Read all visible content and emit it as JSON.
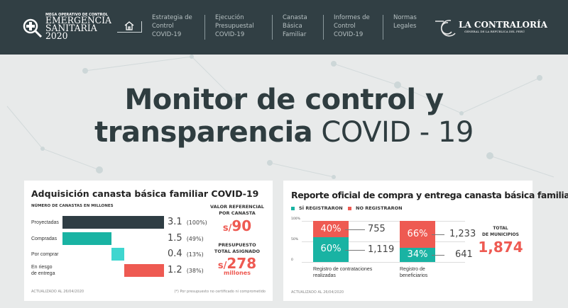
{
  "header": {
    "logo": {
      "kicker": "MEGA OPERATIVO DE CONTROL",
      "line1": "EMERGENCIA",
      "line2": "SANITARIA",
      "line3": "2020"
    },
    "home_icon": "home-icon",
    "nav": [
      {
        "label": "Estrategia de\nControl\nCOVID-19"
      },
      {
        "label": "Ejecución\nPresupuestal\nCOVID-19"
      },
      {
        "label": "Canasta\nBásica\nFamiliar"
      },
      {
        "label": "Informes de\nControl\nCOVID-19"
      },
      {
        "label": "Normas\nLegales"
      }
    ],
    "brand": {
      "title": "LA CONTRALORÍA",
      "subtitle": "GENERAL DE LA REPÚBLICA DEL PERÚ"
    }
  },
  "hero": {
    "line1": "Monitor de control y",
    "line2_bold": "transparencia",
    "line2_light": " COVID - 19"
  },
  "colors": {
    "header": "#313f44",
    "dark": "#2f3d40",
    "teal": "#19b3a3",
    "cyan": "#3fd6cf",
    "red": "#ee5a52"
  },
  "card1": {
    "title": "Adquisición canasta básica familiar COVID-19",
    "subtitle": "NÚMERO DE CANASTAS EN MILLONES",
    "rows": [
      {
        "label": "Proyectadas",
        "value": "3.1",
        "pct": "(100%)",
        "start": 0,
        "amount": 3.1,
        "color": "#2f3d44"
      },
      {
        "label": "Compradas",
        "value": "1.5",
        "pct": "(49%)",
        "start": 0,
        "amount": 1.5,
        "color": "#19b3a3"
      },
      {
        "label": "Por comprar",
        "value": "0.4",
        "pct": "(13%)",
        "start": 1.5,
        "amount": 0.4,
        "color": "#3fd6cf"
      },
      {
        "label": "En riesgo\nde entrega",
        "value": "1.2",
        "pct": "(38%)",
        "start": 1.9,
        "amount": 1.2,
        "color": "#ee5a52"
      }
    ],
    "ref_label": "VALOR REFERENCIAL\nPOR CANASTA",
    "ref_currency": "s/",
    "ref_value": "90",
    "budget_label": "PRESUPUESTO\nTOTAL ASIGNADO",
    "budget_currency": "s/",
    "budget_value": "278",
    "budget_unit": "millones",
    "updated": "ACTUALIZADO AL 26/04/2020",
    "footnote": "(*) Por presupuesto no certificado ni comprometido"
  },
  "card2": {
    "title": "Reporte oficial de compra y entrega canasta básica familiar",
    "legend": [
      {
        "label": "SÍ REGISTRARON",
        "color": "#19b3a3"
      },
      {
        "label": "NO REGISTRARON",
        "color": "#ee5a52"
      }
    ],
    "axis": [
      "100%",
      "50%",
      "0"
    ],
    "bars": [
      {
        "label": "Registro de contrataciones\nrealizadas",
        "si_pct": 60,
        "no_pct": 40,
        "si_label": "60%",
        "no_label": "40%",
        "si_count": "1,119",
        "no_count": "755"
      },
      {
        "label": "Registro de\nbeneficiarios",
        "si_pct": 34,
        "no_pct": 66,
        "si_label": "34%",
        "no_label": "66%",
        "si_count": "641",
        "no_count": "1,233"
      }
    ],
    "total_label": "TOTAL\nDE MUNICIPIOS",
    "total_value": "1,874",
    "updated": "ACTUALIZADO AL 26/04/2020"
  }
}
